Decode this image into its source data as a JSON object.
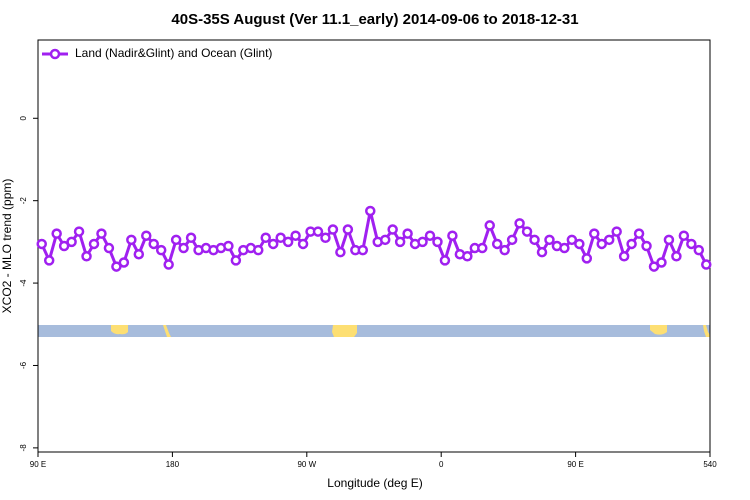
{
  "chart_data": {
    "type": "line",
    "title": "40S-35S August (Ver 11.1_early)   2014-09-06 to 2018-12-31",
    "x_label": "Longitude (deg E)",
    "y_label": "XCO2 - MLO trend (ppm)",
    "xlim": [
      90,
      540
    ],
    "xticks": [
      {
        "value": 90,
        "label": "90 E"
      },
      180,
      {
        "value": 270,
        "label": "90 W"
      },
      {
        "value": 360,
        "label": "0"
      },
      {
        "value": 450,
        "label": "90 E"
      },
      540
    ],
    "ylim": [
      -8.1,
      1.9
    ],
    "yticks": [
      0,
      -2,
      -4,
      -6,
      -8
    ],
    "legend": "top-left",
    "x": [
      92.5,
      97.5,
      102.5,
      107.5,
      112.5,
      117.5,
      122.5,
      127.5,
      132.5,
      137.5,
      142.5,
      147.5,
      152.5,
      157.5,
      162.5,
      167.5,
      172.5,
      177.5,
      182.5,
      187.5,
      192.5,
      197.5,
      202.5,
      207.5,
      212.5,
      217.5,
      222.5,
      227.5,
      232.5,
      237.5,
      242.5,
      247.5,
      252.5,
      257.5,
      262.5,
      267.5,
      272.5,
      277.5,
      282.5,
      287.5,
      292.5,
      297.5,
      302.5,
      307.5,
      312.5,
      317.5,
      322.5,
      327.5,
      332.5,
      337.5,
      342.5,
      347.5,
      352.5,
      357.5,
      362.5,
      367.5,
      372.5,
      377.5,
      382.5,
      387.5,
      392.5,
      397.5,
      402.5,
      407.5,
      412.5,
      417.5,
      422.5,
      427.5,
      432.5,
      437.5,
      442.5,
      447.5,
      452.5,
      457.5,
      462.5,
      467.5,
      472.5,
      477.5,
      482.5,
      487.5,
      492.5,
      497.5,
      502.5,
      507.5,
      512.5,
      517.5,
      522.5,
      527.5,
      532.5,
      537.5
    ],
    "series": [
      {
        "name": "Land (Nadir&Glint) and Ocean (Glint)",
        "color": "#a020f0",
        "values": [
          -3.05,
          -3.45,
          -2.8,
          -3.1,
          -3.0,
          -2.75,
          -3.35,
          -3.05,
          -2.8,
          -3.15,
          -3.6,
          -3.5,
          -2.95,
          -3.3,
          -2.85,
          -3.05,
          -3.2,
          -3.55,
          -2.95,
          -3.15,
          -2.9,
          -3.2,
          -3.15,
          -3.2,
          -3.15,
          -3.1,
          -3.45,
          -3.2,
          -3.15,
          -3.2,
          -2.9,
          -3.05,
          -2.9,
          -3.0,
          -2.85,
          -3.05,
          -2.75,
          -2.75,
          -2.9,
          -2.7,
          -3.25,
          -2.7,
          -3.2,
          -3.2,
          -2.25,
          -3.0,
          -2.95,
          -2.7,
          -3.0,
          -2.8,
          -3.05,
          -3.0,
          -2.85,
          -3.0,
          -3.45,
          -2.85,
          -3.3,
          -3.35,
          -3.15,
          -3.15,
          -2.6,
          -3.05,
          -3.2,
          -2.95,
          -2.55,
          -2.75,
          -2.95,
          -3.25,
          -2.95,
          -3.1,
          -3.15,
          -2.95,
          -3.05,
          -3.4,
          -2.8,
          -3.05,
          -2.95,
          -2.75,
          -3.35,
          -3.05,
          -2.8,
          -3.1,
          -3.6,
          -3.5,
          -2.95,
          -3.35,
          -2.85,
          -3.05,
          -3.2,
          -3.55
        ]
      }
    ]
  }
}
